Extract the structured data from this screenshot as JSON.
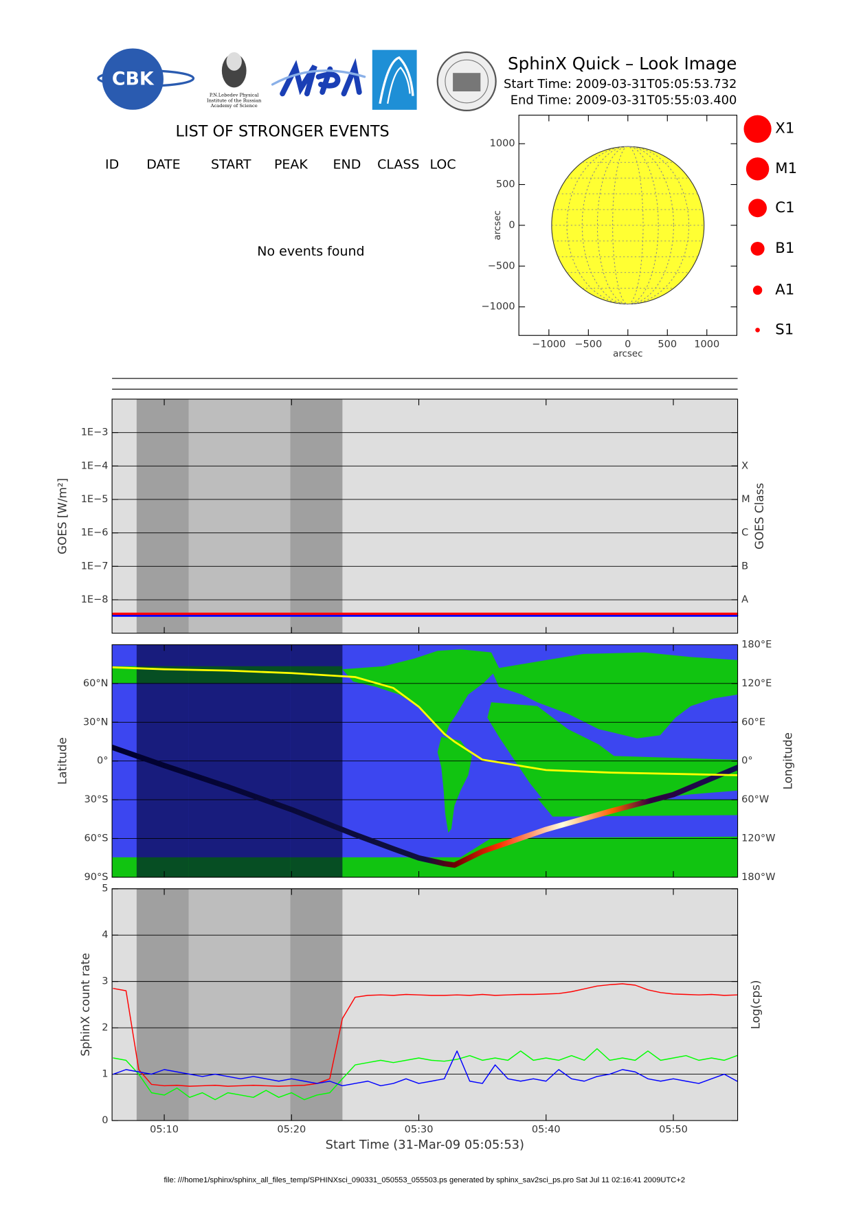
{
  "header": {
    "title": "SphinX Quick – Look Image",
    "start_time": "Start Time: 2009-03-31T05:05:53.732",
    "end_time": "End Time: 2009-03-31T05:55:03.400"
  },
  "logos": {
    "cbk": "CBK",
    "lebedev": [
      "P.N.Lebedev Physical",
      "Institute of the Russian",
      "Academy of Science"
    ]
  },
  "events": {
    "title": "LIST OF STRONGER EVENTS",
    "columns": [
      "ID",
      "DATE",
      "START",
      "PEAK",
      "END",
      "CLASS",
      "LOC"
    ],
    "message": "No events found"
  },
  "class_legend": [
    "X1",
    "M1",
    "C1",
    "B1",
    "A1",
    "S1"
  ],
  "shading": {
    "dark": [
      [
        7.83,
        11.93
      ],
      [
        19.89,
        24.0
      ]
    ],
    "mid": [
      [
        11.93,
        19.89
      ]
    ]
  },
  "footer": "file: ///home1/sphinx/sphinx_all_files_temp/SPHINXsci_090331_050553_055503.ps generated by sphinx_sav2sci_ps.pro Sat Jul 11 02:16:41 2009UTC+2",
  "chart_data": [
    {
      "type": "disk",
      "xlabel": "arcsec",
      "ylabel": "arcsec",
      "xlim": [
        -1380,
        1380
      ],
      "ylim": [
        -1350,
        1350
      ],
      "xticks": [
        {
          "value": -1000,
          "label": "−1000"
        },
        {
          "value": -500,
          "label": "−500"
        },
        0,
        500,
        1000
      ],
      "yticks": [
        {
          "value": -1000,
          "label": "−1000"
        },
        {
          "value": -500,
          "label": "−500"
        },
        0,
        500,
        1000
      ],
      "radius": 965,
      "color": "#ffff33"
    },
    {
      "type": "line",
      "ylabel": "GOES [W/m²]",
      "y2label": "GOES Class",
      "ylog": true,
      "grid": true,
      "xlim": [
        5.9,
        55.05
      ],
      "xticks": [
        10,
        20,
        30,
        40,
        50
      ],
      "ylim": [
        1e-09,
        0.01
      ],
      "yticks": [
        {
          "value": 0.001,
          "label": "1E−3"
        },
        {
          "value": 0.0001,
          "label": "1E−4"
        },
        {
          "value": 1e-05,
          "label": "1E−5"
        },
        {
          "value": 1e-06,
          "label": "1E−6"
        },
        {
          "value": 1e-07,
          "label": "1E−7"
        },
        {
          "value": 1e-08,
          "label": "1E−8"
        }
      ],
      "y2ticks": [
        {
          "value": 0.0001,
          "label": "X"
        },
        {
          "value": 1e-05,
          "label": "M"
        },
        {
          "value": 1e-06,
          "label": "C"
        },
        {
          "value": 1e-07,
          "label": "B"
        },
        {
          "value": 1e-08,
          "label": "A"
        }
      ],
      "x": [
        6,
        55
      ],
      "series": [
        {
          "color": "#0000ff",
          "values": [
            3.35e-09,
            3.35e-09
          ]
        },
        {
          "color": "#ff0000",
          "values": [
            3.8e-09,
            3.8e-09
          ]
        }
      ]
    },
    {
      "type": "map",
      "ylabel": "Latitude",
      "y2label": "Longitude",
      "grid": true,
      "xlim": [
        5.9,
        55.05
      ],
      "xticks": [
        10,
        20,
        30,
        40,
        50
      ],
      "ylim": [
        -90,
        90
      ],
      "yticks": [
        {
          "value": 60,
          "label": "60°N"
        },
        {
          "value": 30,
          "label": "30°N"
        },
        {
          "value": 0,
          "label": "0°"
        },
        {
          "value": -30,
          "label": "30°S"
        },
        {
          "value": -60,
          "label": "60°S"
        },
        {
          "value": -90,
          "label": "90°S"
        }
      ],
      "y2lim": [
        -180,
        180
      ],
      "y2ticks": [
        {
          "value": 180,
          "label": "180°E"
        },
        {
          "value": 120,
          "label": "120°E"
        },
        {
          "value": 60,
          "label": "60°E"
        },
        {
          "value": 0,
          "label": "0°"
        },
        {
          "value": -60,
          "label": "60°W"
        },
        {
          "value": -120,
          "label": "120°W"
        },
        {
          "value": -180,
          "label": "180°W"
        }
      ],
      "x": [
        5.9,
        10,
        15,
        20,
        25,
        28,
        30,
        32,
        32.8,
        35,
        40,
        45,
        50,
        55.05
      ],
      "series": [
        {
          "color": "#000030",
          "values": [
            10.6,
            -3.5,
            -20,
            -37.6,
            -57,
            -68,
            -75,
            -79.5,
            -80.6,
            -70,
            -53,
            -39,
            -26,
            -5
          ]
        },
        {
          "color": "#ffff00",
          "axis": "y2",
          "values": [
            145,
            142,
            140,
            136,
            130,
            113,
            84,
            42,
            30,
            2,
            -14,
            -18,
            -20,
            -22
          ]
        }
      ]
    },
    {
      "type": "line",
      "xlabel": "Start Time (31-Mar-09 05:05:53)",
      "ylabel": "SphinX count rate",
      "y2label": "Log(cps)",
      "grid": true,
      "xlim": [
        5.9,
        55.05
      ],
      "xticks": [
        {
          "value": 10,
          "label": "05:10"
        },
        {
          "value": 20,
          "label": "05:20"
        },
        {
          "value": 30,
          "label": "05:30"
        },
        {
          "value": 40,
          "label": "05:40"
        },
        {
          "value": 50,
          "label": "05:50"
        }
      ],
      "ylim": [
        0,
        5
      ],
      "yticks": [
        0,
        1,
        2,
        3,
        4,
        5
      ],
      "x": [
        6,
        7,
        8,
        9,
        10,
        11,
        12,
        13,
        14,
        15,
        16,
        17,
        18,
        19,
        20,
        21,
        22,
        23,
        24,
        25,
        26,
        27,
        28,
        29,
        30,
        31,
        32,
        33,
        34,
        35,
        36,
        37,
        38,
        39,
        40,
        41,
        42,
        43,
        44,
        45,
        46,
        47,
        48,
        49,
        50,
        51,
        52,
        53,
        54,
        55
      ],
      "series": [
        {
          "color": "#ff0000",
          "values": [
            2.85,
            2.8,
            1.1,
            0.78,
            0.75,
            0.76,
            0.74,
            0.75,
            0.76,
            0.74,
            0.75,
            0.76,
            0.75,
            0.74,
            0.75,
            0.76,
            0.8,
            0.9,
            2.2,
            2.66,
            2.7,
            2.71,
            2.7,
            2.72,
            2.71,
            2.7,
            2.7,
            2.71,
            2.7,
            2.72,
            2.7,
            2.71,
            2.72,
            2.72,
            2.73,
            2.74,
            2.78,
            2.84,
            2.9,
            2.93,
            2.95,
            2.92,
            2.82,
            2.76,
            2.73,
            2.72,
            2.71,
            2.72,
            2.7,
            2.71
          ]
        },
        {
          "color": "#00ff00",
          "values": [
            1.35,
            1.3,
            1.0,
            0.6,
            0.55,
            0.7,
            0.5,
            0.6,
            0.45,
            0.6,
            0.55,
            0.5,
            0.65,
            0.5,
            0.6,
            0.45,
            0.55,
            0.6,
            0.9,
            1.2,
            1.25,
            1.3,
            1.25,
            1.3,
            1.35,
            1.3,
            1.28,
            1.32,
            1.4,
            1.3,
            1.35,
            1.3,
            1.5,
            1.3,
            1.35,
            1.3,
            1.4,
            1.3,
            1.55,
            1.3,
            1.35,
            1.3,
            1.5,
            1.3,
            1.35,
            1.4,
            1.3,
            1.35,
            1.3,
            1.4
          ]
        },
        {
          "color": "#0000ff",
          "values": [
            1.0,
            1.1,
            1.05,
            1.0,
            1.1,
            1.05,
            1.0,
            0.95,
            1.0,
            0.95,
            0.9,
            0.95,
            0.9,
            0.85,
            0.9,
            0.85,
            0.8,
            0.85,
            0.75,
            0.8,
            0.85,
            0.75,
            0.8,
            0.9,
            0.8,
            0.85,
            0.9,
            1.5,
            0.85,
            0.8,
            1.2,
            0.9,
            0.85,
            0.9,
            0.85,
            1.1,
            0.9,
            0.85,
            0.95,
            1.0,
            1.1,
            1.05,
            0.9,
            0.85,
            0.9,
            0.85,
            0.8,
            0.9,
            1.0,
            0.85
          ]
        }
      ]
    }
  ]
}
